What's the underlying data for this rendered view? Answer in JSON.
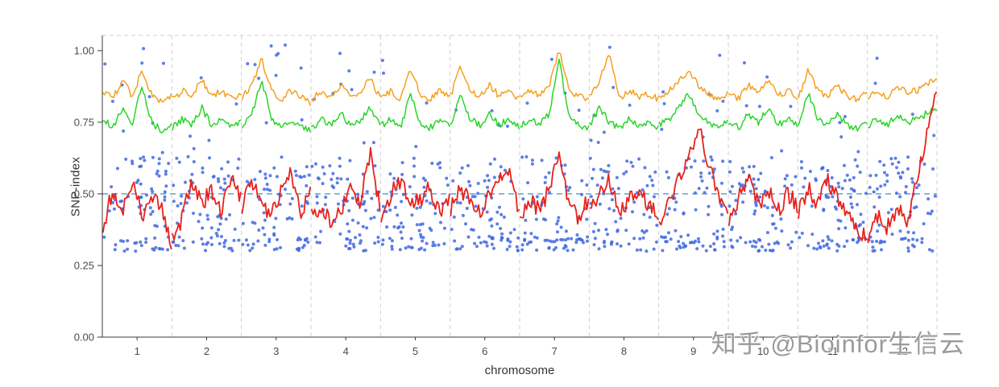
{
  "watermark": {
    "text": "知乎 @Bioinfor生信云"
  },
  "chart_data": {
    "type": "scatter",
    "title": "",
    "xlabel": "chromosome",
    "ylabel": "SNP-index",
    "ylim": [
      0,
      1.053
    ],
    "grid_on": true,
    "legend": "none",
    "yticks": [
      {
        "value": 0.0,
        "label": "0.00"
      },
      {
        "value": 0.25,
        "label": "0.25"
      },
      {
        "value": 0.5,
        "label": "0.50"
      },
      {
        "value": 0.75,
        "label": "0.75"
      },
      {
        "value": 1.0,
        "label": "1.00"
      }
    ],
    "categories": [
      "1",
      "2",
      "3",
      "4",
      "5",
      "6",
      "7",
      "8",
      "9",
      "10",
      "11",
      "12"
    ],
    "threshold": {
      "value": 0.5,
      "color": "#4E9CC8"
    },
    "grid": {
      "divider_color": "#CFCFCF",
      "axis_color": "#3a3a3a",
      "tick_label_color": "#4a4a4a"
    },
    "scatter": {
      "color": "#4169E1",
      "opacity": 0.85,
      "radius": 2,
      "points_per_chromosome": 85,
      "y_floor": 0.3,
      "seed": 7
    },
    "series": [
      {
        "id": "green",
        "color": "#2BD42B",
        "width": 1.5,
        "jitter": 0.012,
        "values": [
          [
            0.76,
            0.73,
            0.8,
            0.74,
            0.88,
            0.75,
            0.72,
            0.74
          ],
          [
            0.73,
            0.76,
            0.74,
            0.8,
            0.74,
            0.76,
            0.73,
            0.75
          ],
          [
            0.74,
            0.78,
            0.9,
            0.76,
            0.73,
            0.76,
            0.74,
            0.72
          ],
          [
            0.73,
            0.76,
            0.74,
            0.78,
            0.74,
            0.76,
            0.8,
            0.74
          ],
          [
            0.74,
            0.76,
            0.73,
            0.85,
            0.75,
            0.73,
            0.76,
            0.74
          ],
          [
            0.74,
            0.85,
            0.76,
            0.74,
            0.78,
            0.74,
            0.76,
            0.73
          ],
          [
            0.74,
            0.76,
            0.74,
            0.78,
            0.97,
            0.76,
            0.74,
            0.73
          ],
          [
            0.74,
            0.8,
            0.75,
            0.73,
            0.76,
            0.74,
            0.75,
            0.73
          ],
          [
            0.74,
            0.76,
            0.8,
            0.85,
            0.78,
            0.75,
            0.73,
            0.75
          ],
          [
            0.75,
            0.73,
            0.78,
            0.75,
            0.8,
            0.74,
            0.76,
            0.74
          ],
          [
            0.74,
            0.85,
            0.76,
            0.74,
            0.78,
            0.74,
            0.73,
            0.75
          ],
          [
            0.74,
            0.76,
            0.74,
            0.78,
            0.75,
            0.76,
            0.78,
            0.8
          ]
        ]
      },
      {
        "id": "orange",
        "color": "#F5A01E",
        "width": 1.5,
        "jitter": 0.012,
        "values": [
          [
            0.86,
            0.83,
            0.9,
            0.84,
            0.93,
            0.85,
            0.82,
            0.84
          ],
          [
            0.83,
            0.86,
            0.84,
            0.9,
            0.84,
            0.86,
            0.83,
            0.85
          ],
          [
            0.84,
            0.88,
            0.97,
            0.86,
            0.83,
            0.86,
            0.84,
            0.82
          ],
          [
            0.83,
            0.86,
            0.84,
            0.88,
            0.84,
            0.86,
            0.9,
            0.84
          ],
          [
            0.84,
            0.86,
            0.83,
            0.93,
            0.85,
            0.83,
            0.86,
            0.84
          ],
          [
            0.84,
            0.95,
            0.86,
            0.84,
            0.88,
            0.84,
            0.86,
            0.83
          ],
          [
            0.84,
            0.86,
            0.84,
            0.88,
            1.0,
            0.86,
            0.84,
            0.83
          ],
          [
            0.84,
            0.9,
            1.0,
            0.83,
            0.86,
            0.84,
            0.85,
            0.83
          ],
          [
            0.84,
            0.86,
            0.9,
            0.93,
            0.88,
            0.85,
            0.83,
            0.85
          ],
          [
            0.85,
            0.83,
            0.88,
            0.85,
            0.9,
            0.84,
            0.86,
            0.84
          ],
          [
            0.84,
            0.93,
            0.86,
            0.84,
            0.88,
            0.84,
            0.83,
            0.85
          ],
          [
            0.84,
            0.86,
            0.84,
            0.88,
            0.85,
            0.86,
            0.88,
            0.9
          ]
        ]
      },
      {
        "id": "red",
        "color": "#E8221D",
        "width": 1.8,
        "jitter": 0.03,
        "values": [
          [
            0.38,
            0.52,
            0.44,
            0.55,
            0.42,
            0.5,
            0.45,
            0.33
          ],
          [
            0.33,
            0.42,
            0.55,
            0.46,
            0.52,
            0.44,
            0.56,
            0.48
          ],
          [
            0.45,
            0.55,
            0.47,
            0.42,
            0.52,
            0.58,
            0.44,
            0.5
          ],
          [
            0.42,
            0.46,
            0.4,
            0.44,
            0.52,
            0.47,
            0.65,
            0.45
          ],
          [
            0.42,
            0.5,
            0.55,
            0.45,
            0.48,
            0.52,
            0.43,
            0.47
          ],
          [
            0.45,
            0.52,
            0.47,
            0.44,
            0.5,
            0.55,
            0.6,
            0.42
          ],
          [
            0.4,
            0.48,
            0.44,
            0.52,
            0.65,
            0.45,
            0.42,
            0.48
          ],
          [
            0.45,
            0.5,
            0.55,
            0.44,
            0.48,
            0.52,
            0.46,
            0.42
          ],
          [
            0.4,
            0.48,
            0.55,
            0.62,
            0.75,
            0.6,
            0.5,
            0.44
          ],
          [
            0.42,
            0.48,
            0.58,
            0.46,
            0.52,
            0.44,
            0.5,
            0.46
          ],
          [
            0.44,
            0.52,
            0.46,
            0.55,
            0.48,
            0.42,
            0.38,
            0.35
          ],
          [
            0.35,
            0.42,
            0.38,
            0.45,
            0.4,
            0.55,
            0.7,
            0.85
          ]
        ]
      }
    ]
  }
}
